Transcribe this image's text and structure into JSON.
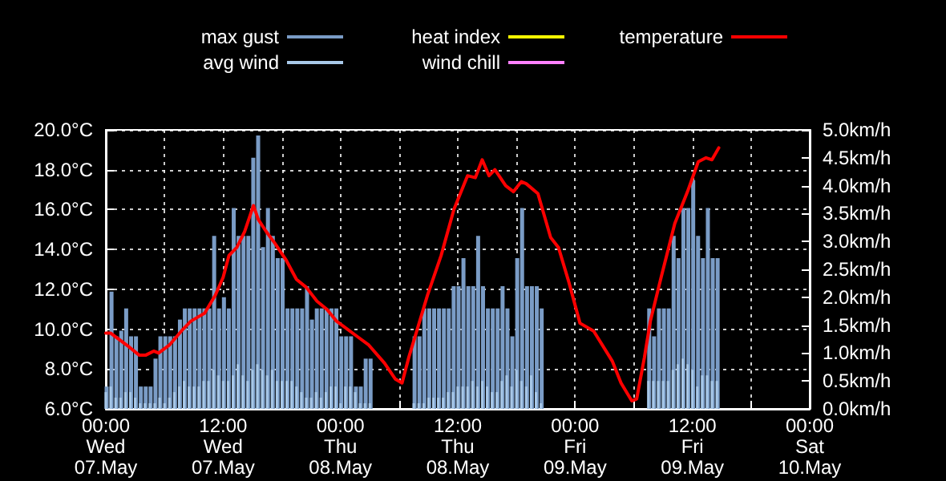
{
  "chart_data": {
    "type": "bar",
    "legend": "top",
    "grid": true,
    "marker": "none",
    "line_style": "solid",
    "xlim": [
      "--05-07T00:00",
      "--05-10T00:00"
    ],
    "xticks": [
      {
        "value": "--05-07T00:00",
        "label": "00:00\nWed\n07.May"
      },
      {
        "value": "--05-07T06:00",
        "label": null
      },
      {
        "value": "--05-07T12:00",
        "label": "12:00\nWed\n07.May"
      },
      {
        "value": "--05-07T18:00",
        "label": null
      },
      {
        "value": "--05-08T00:00",
        "label": "00:00\nThu\n08.May"
      },
      {
        "value": "--05-08T06:00",
        "label": null
      },
      {
        "value": "--05-08T12:00",
        "label": "12:00\nThu\n08.May"
      },
      {
        "value": "--05-08T18:00",
        "label": null
      },
      {
        "value": "--05-09T00:00",
        "label": "00:00\nFri\n09.May"
      },
      {
        "value": "--05-09T06:00",
        "label": null
      },
      {
        "value": "--05-09T12:00",
        "label": "12:00\nFri\n09.May"
      },
      {
        "value": "--05-09T18:00",
        "label": null
      },
      {
        "value": "--05-10T00:00",
        "label": "00:00\nSat\n10.May"
      }
    ],
    "ylim": [
      6,
      20
    ],
    "yticks": [
      {
        "value": 6,
        "label": "6.0°C"
      },
      {
        "value": 8,
        "label": "8.0°C"
      },
      {
        "value": 10,
        "label": "10.0°C"
      },
      {
        "value": 12,
        "label": "12.0°C"
      },
      {
        "value": 14,
        "label": "14.0°C"
      },
      {
        "value": 16,
        "label": "16.0°C"
      },
      {
        "value": 18,
        "label": "18.0°C"
      },
      {
        "value": 20,
        "label": "20.0°C"
      }
    ],
    "y2lim": [
      0,
      5
    ],
    "y2ticks": [
      {
        "value": 0,
        "label": "0.0km/h"
      },
      {
        "value": 0.5,
        "label": "0.5km/h"
      },
      {
        "value": 1,
        "label": "1.0km/h"
      },
      {
        "value": 1.5,
        "label": "1.5km/h"
      },
      {
        "value": 2,
        "label": "2.0km/h"
      },
      {
        "value": 2.5,
        "label": "2.5km/h"
      },
      {
        "value": 3,
        "label": "3.0km/h"
      },
      {
        "value": 3.5,
        "label": "3.5km/h"
      },
      {
        "value": 4,
        "label": "4.0km/h"
      },
      {
        "value": 4.5,
        "label": "4.5km/h"
      },
      {
        "value": 5,
        "label": "5.0km/h"
      }
    ],
    "x": [
      "--05-07T00:00",
      "--05-07T00:30",
      "--05-07T01:00",
      "--05-07T01:30",
      "--05-07T02:00",
      "--05-07T02:30",
      "--05-07T03:00",
      "--05-07T03:30",
      "--05-07T04:00",
      "--05-07T04:30",
      "--05-07T05:00",
      "--05-07T05:30",
      "--05-07T06:00",
      "--05-07T06:30",
      "--05-07T07:00",
      "--05-07T07:30",
      "--05-07T08:00",
      "--05-07T08:30",
      "--05-07T09:00",
      "--05-07T09:30",
      "--05-07T10:00",
      "--05-07T10:30",
      "--05-07T11:00",
      "--05-07T11:30",
      "--05-07T12:00",
      "--05-07T12:30",
      "--05-07T13:00",
      "--05-07T13:30",
      "--05-07T14:00",
      "--05-07T14:30",
      "--05-07T15:00",
      "--05-07T15:30",
      "--05-07T16:00",
      "--05-07T16:30",
      "--05-07T17:00",
      "--05-07T17:30",
      "--05-07T18:00",
      "--05-07T18:30",
      "--05-07T19:00",
      "--05-07T19:30",
      "--05-07T20:00",
      "--05-07T20:30",
      "--05-07T21:00",
      "--05-07T21:30",
      "--05-07T22:00",
      "--05-07T22:30",
      "--05-07T23:00",
      "--05-07T23:30",
      "--05-08T00:00",
      "--05-08T00:30",
      "--05-08T01:00",
      "--05-08T01:30",
      "--05-08T02:00",
      "--05-08T02:30",
      "--05-08T03:00",
      "--05-08T03:30",
      "--05-08T04:00",
      "--05-08T04:30",
      "--05-08T05:00",
      "--05-08T05:30",
      "--05-08T06:00",
      "--05-08T06:30",
      "--05-08T07:00",
      "--05-08T07:30",
      "--05-08T08:00",
      "--05-08T08:30",
      "--05-08T09:00",
      "--05-08T09:30",
      "--05-08T10:00",
      "--05-08T10:30",
      "--05-08T11:00",
      "--05-08T11:30",
      "--05-08T12:00",
      "--05-08T12:30",
      "--05-08T13:00",
      "--05-08T13:30",
      "--05-08T14:00",
      "--05-08T14:30",
      "--05-08T15:00",
      "--05-08T15:30",
      "--05-08T16:00",
      "--05-08T16:30",
      "--05-08T17:00",
      "--05-08T17:30",
      "--05-08T18:00",
      "--05-08T18:30",
      "--05-08T19:00",
      "--05-08T19:30",
      "--05-08T20:00",
      "--05-08T20:30",
      "--05-08T21:00",
      "--05-08T21:30",
      "--05-08T22:00",
      "--05-08T22:30",
      "--05-08T23:00",
      "--05-08T23:30",
      "--05-09T00:00",
      "--05-09T00:30",
      "--05-09T01:00",
      "--05-09T01:30",
      "--05-09T02:00",
      "--05-09T02:30",
      "--05-09T03:00",
      "--05-09T03:30",
      "--05-09T04:00",
      "--05-09T04:30",
      "--05-09T05:00",
      "--05-09T05:30",
      "--05-09T06:00",
      "--05-09T06:30",
      "--05-09T07:00",
      "--05-09T07:30",
      "--05-09T08:00",
      "--05-09T08:30",
      "--05-09T09:00",
      "--05-09T09:30",
      "--05-09T10:00",
      "--05-09T10:30",
      "--05-09T11:00",
      "--05-09T11:30",
      "--05-09T12:00",
      "--05-09T12:30",
      "--05-09T13:00",
      "--05-09T13:30",
      "--05-09T14:00",
      "--05-09T14:30"
    ],
    "series": [
      {
        "name": "max gust",
        "axis": "y2",
        "color": "#7a9cc6",
        "values": [
          0.4,
          2.1,
          1.3,
          1.4,
          1.8,
          1.3,
          1.3,
          0.4,
          0.4,
          0.4,
          0.9,
          1.3,
          1.3,
          1.3,
          1.3,
          1.6,
          1.8,
          1.8,
          1.8,
          1.8,
          1.8,
          1.8,
          3.1,
          1.8,
          2.0,
          1.8,
          3.6,
          3.1,
          3.1,
          3.1,
          4.5,
          4.9,
          2.9,
          3.6,
          3.1,
          2.7,
          2.7,
          1.8,
          1.8,
          1.8,
          1.8,
          2.2,
          1.6,
          1.8,
          1.8,
          1.8,
          1.8,
          1.8,
          1.3,
          1.3,
          1.3,
          0.4,
          0.4,
          0.9,
          0.9,
          null,
          null,
          null,
          null,
          null,
          null,
          null,
          null,
          1.3,
          1.3,
          1.8,
          1.8,
          1.8,
          1.8,
          1.8,
          1.8,
          2.2,
          2.2,
          2.7,
          2.2,
          2.2,
          3.1,
          2.2,
          1.8,
          1.8,
          1.8,
          2.2,
          1.8,
          1.3,
          2.7,
          3.6,
          2.2,
          2.2,
          2.2,
          1.8,
          null,
          null,
          null,
          null,
          null,
          null,
          null,
          null,
          null,
          null,
          null,
          null,
          null,
          null,
          null,
          null,
          null,
          null,
          null,
          null,
          null,
          1.8,
          1.3,
          1.8,
          1.8,
          1.8,
          3.1,
          2.7,
          3.6,
          3.6,
          4.1,
          3.1,
          2.7,
          3.6,
          2.7,
          2.7
        ]
      },
      {
        "name": "avg wind",
        "axis": "y2",
        "color": "#a8c8e8",
        "values": [
          0.3,
          0.4,
          0.2,
          0.2,
          0.3,
          0.3,
          0.2,
          0.1,
          0.1,
          0.1,
          0.1,
          0.2,
          0.1,
          0.2,
          0.3,
          0.4,
          0.5,
          0.4,
          0.4,
          0.4,
          0.5,
          0.5,
          0.7,
          0.6,
          0.5,
          0.5,
          0.6,
          0.8,
          0.6,
          0.5,
          0.7,
          0.8,
          0.7,
          0.6,
          0.7,
          0.5,
          0.5,
          0.5,
          0.5,
          0.4,
          0.3,
          0.2,
          0.2,
          0.3,
          0.2,
          0.3,
          0.4,
          0.4,
          0.1,
          0.4,
          0.4,
          0.3,
          0.1,
          0.1,
          0.1,
          null,
          null,
          null,
          null,
          null,
          null,
          null,
          null,
          0.1,
          0.1,
          0.1,
          0.2,
          0.2,
          0.2,
          0.2,
          0.3,
          0.3,
          0.4,
          0.4,
          0.4,
          0.5,
          0.4,
          0.5,
          0.4,
          0.3,
          0.3,
          0.5,
          0.6,
          0.4,
          0.7,
          0.5,
          0.4,
          0.6,
          0.3,
          0.1,
          null,
          null,
          null,
          null,
          null,
          null,
          null,
          null,
          null,
          null,
          null,
          null,
          null,
          null,
          null,
          null,
          null,
          null,
          null,
          null,
          null,
          0.5,
          0.5,
          0.5,
          0.5,
          0.5,
          0.7,
          0.8,
          0.9,
          0.8,
          0.7,
          0.4,
          0.6,
          0.6,
          0.5,
          0.5
        ]
      },
      {
        "name": "heat index",
        "type": "line",
        "color": "#ffff00",
        "values": [
          null,
          null,
          null,
          null,
          null,
          null,
          null,
          null,
          null,
          null,
          null,
          null,
          null,
          null,
          null,
          null,
          null,
          null,
          null,
          null,
          null,
          null,
          null,
          null,
          null,
          null,
          null,
          null,
          null,
          null,
          null,
          null,
          null,
          null,
          null,
          null,
          null,
          null,
          null,
          null,
          null,
          null,
          null,
          null,
          null,
          null,
          null,
          null,
          null,
          null,
          null,
          null,
          null,
          null,
          null,
          null,
          null,
          null,
          null,
          null,
          null,
          null,
          null,
          null,
          null,
          null,
          null,
          null,
          null,
          null,
          null,
          null,
          null,
          null,
          null,
          null,
          null,
          null,
          null,
          null,
          null,
          null,
          null,
          null,
          null,
          null,
          null,
          null,
          null,
          null,
          null,
          null,
          null,
          null,
          null,
          null,
          null,
          null,
          null,
          null,
          null,
          null,
          null,
          null,
          null,
          null,
          null,
          null,
          null,
          null,
          null,
          null,
          null,
          null,
          null,
          null,
          null,
          null,
          null,
          null,
          null,
          null,
          null,
          null,
          null,
          null
        ]
      },
      {
        "name": "wind chill",
        "type": "line",
        "color": "#ff80ff",
        "values": [
          null,
          null,
          null,
          null,
          null,
          null,
          null,
          null,
          null,
          null,
          null,
          null,
          null,
          null,
          null,
          null,
          null,
          null,
          null,
          null,
          null,
          null,
          null,
          null,
          null,
          null,
          null,
          null,
          null,
          null,
          null,
          null,
          null,
          null,
          null,
          null,
          null,
          null,
          null,
          null,
          null,
          null,
          null,
          null,
          null,
          null,
          null,
          null,
          null,
          null,
          null,
          null,
          null,
          null,
          null,
          null,
          null,
          null,
          null,
          null,
          null,
          null,
          null,
          null,
          null,
          null,
          null,
          null,
          null,
          null,
          null,
          null,
          null,
          null,
          null,
          null,
          null,
          null,
          null,
          null,
          null,
          null,
          null,
          null,
          null,
          null,
          null,
          null,
          null,
          null,
          null,
          null,
          null,
          null,
          null,
          null,
          null,
          null,
          null,
          null,
          null,
          null,
          null,
          null,
          null,
          null,
          null,
          null,
          null,
          null,
          null,
          null,
          null,
          null,
          null,
          null,
          null,
          null,
          null,
          null,
          null,
          null,
          null,
          null,
          null,
          null
        ]
      },
      {
        "name": "temperature",
        "type": "line",
        "color": "#ff0000",
        "x": [
          "--05-07T00:00",
          "--05-07T00:30",
          "--05-07T02:24",
          "--05-07T03:24",
          "--05-07T04:06",
          "--05-07T04:54",
          "--05-07T05:24",
          "--05-07T06:30",
          "--05-07T07:54",
          "--05-07T08:42",
          "--05-07T10:06",
          "--05-07T11:12",
          "--05-07T12:00",
          "--05-07T12:36",
          "--05-07T13:24",
          "--05-07T14:12",
          "--05-07T15:06",
          "--05-07T15:36",
          "--05-07T16:24",
          "--05-07T17:18",
          "--05-07T18:24",
          "--05-07T19:30",
          "--05-07T20:30",
          "--05-07T21:36",
          "--05-07T22:36",
          "--05-07T23:36",
          "--05-08T01:48",
          "--05-08T02:54",
          "--05-08T04:30",
          "--05-08T05:36",
          "--05-08T06:18",
          "--05-08T07:00",
          "--05-08T07:48",
          "--05-08T08:54",
          "--05-08T10:18",
          "--05-08T11:36",
          "--05-08T13:00",
          "--05-08T13:48",
          "--05-08T14:30",
          "--05-08T15:12",
          "--05-08T15:48",
          "--05-08T16:54",
          "--05-08T17:42",
          "--05-08T18:30",
          "--05-08T19:00",
          "--05-08T20:12",
          "--05-08T21:30",
          "--05-08T22:18",
          "--05-08T23:24",
          "--05-09T00:30",
          "--05-09T01:54",
          "--05-09T03:48",
          "--05-09T04:42",
          "--05-09T05:48",
          "--05-09T06:18",
          "--05-09T07:06",
          "--05-09T07:42",
          "--05-09T08:48",
          "--05-09T10:12",
          "--05-09T11:30",
          "--05-09T12:36",
          "--05-09T13:24",
          "--05-09T14:00",
          "--05-09T14:42"
        ],
        "values": [
          9.8,
          9.8,
          9.1,
          8.7,
          8.7,
          8.9,
          8.8,
          9.2,
          10.0,
          10.4,
          10.8,
          11.7,
          12.6,
          13.7,
          14.1,
          14.9,
          16.2,
          15.5,
          14.9,
          14.3,
          13.5,
          12.5,
          12.1,
          11.4,
          11.0,
          10.4,
          9.6,
          9.2,
          8.3,
          7.5,
          7.3,
          8.6,
          9.9,
          11.7,
          13.7,
          16.0,
          17.7,
          17.6,
          18.5,
          17.7,
          18.0,
          17.2,
          16.9,
          17.4,
          17.3,
          16.8,
          14.6,
          14.1,
          12.3,
          10.3,
          9.9,
          8.4,
          7.3,
          6.4,
          6.5,
          8.6,
          10.4,
          12.6,
          15.3,
          16.9,
          18.4,
          18.6,
          18.5,
          19.1
        ]
      }
    ]
  }
}
